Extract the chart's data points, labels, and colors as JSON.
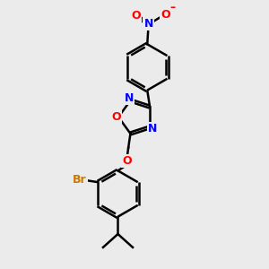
{
  "background_color": "#ebebeb",
  "bond_color": "#000000",
  "nitrogen_color": "#0000ff",
  "oxygen_color": "#ff0000",
  "bromine_color": "#cc7700",
  "line_width": 1.8,
  "dbo": 0.055,
  "figsize": [
    3.0,
    3.0
  ],
  "dpi": 100,
  "xlim": [
    0,
    10
  ],
  "ylim": [
    0,
    10
  ]
}
